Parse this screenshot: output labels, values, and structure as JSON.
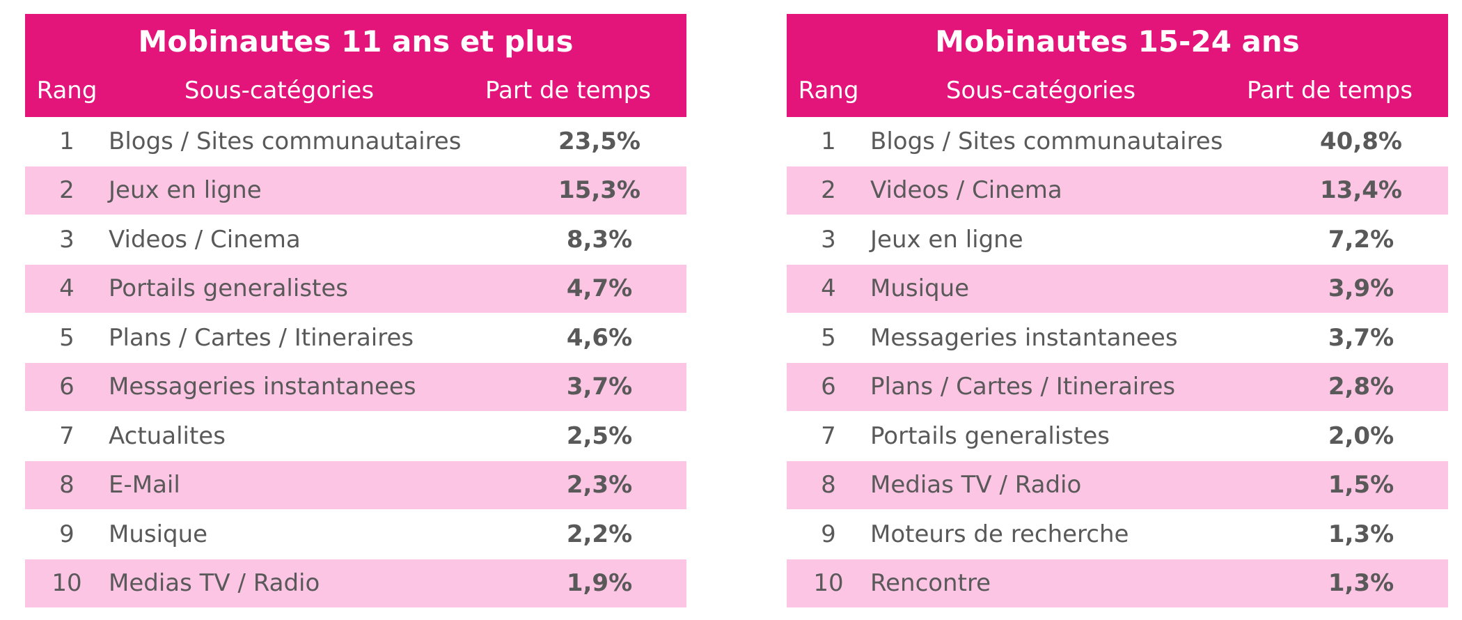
{
  "tables": [
    {
      "title": "Mobinautes 11 ans et plus",
      "headers": {
        "rank": "Rang",
        "category": "Sous-catégories",
        "share": "Part de temps"
      },
      "rows": [
        {
          "rank": "1",
          "category": "Blogs / Sites communautaires",
          "share": "23,5%"
        },
        {
          "rank": "2",
          "category": "Jeux en ligne",
          "share": "15,3%"
        },
        {
          "rank": "3",
          "category": "Videos / Cinema",
          "share": "8,3%"
        },
        {
          "rank": "4",
          "category": "Portails generalistes",
          "share": "4,7%"
        },
        {
          "rank": "5",
          "category": "Plans / Cartes / Itineraires",
          "share": "4,6%"
        },
        {
          "rank": "6",
          "category": "Messageries instantanees",
          "share": "3,7%"
        },
        {
          "rank": "7",
          "category": "Actualites",
          "share": "2,5%"
        },
        {
          "rank": "8",
          "category": "E-Mail",
          "share": "2,3%"
        },
        {
          "rank": "9",
          "category": "Musique",
          "share": "2,2%"
        },
        {
          "rank": "10",
          "category": "Medias TV / Radio",
          "share": "1,9%"
        }
      ]
    },
    {
      "title": "Mobinautes 15-24 ans",
      "headers": {
        "rank": "Rang",
        "category": "Sous-catégories",
        "share": "Part de temps"
      },
      "rows": [
        {
          "rank": "1",
          "category": "Blogs / Sites communautaires",
          "share": "40,8%"
        },
        {
          "rank": "2",
          "category": "Videos / Cinema",
          "share": "13,4%"
        },
        {
          "rank": "3",
          "category": "Jeux en ligne",
          "share": "7,2%"
        },
        {
          "rank": "4",
          "category": "Musique",
          "share": "3,9%"
        },
        {
          "rank": "5",
          "category": "Messageries instantanees",
          "share": "3,7%"
        },
        {
          "rank": "6",
          "category": "Plans / Cartes / Itineraires",
          "share": "2,8%"
        },
        {
          "rank": "7",
          "category": "Portails generalistes",
          "share": "2,0%"
        },
        {
          "rank": "8",
          "category": "Medias TV / Radio",
          "share": "1,5%"
        },
        {
          "rank": "9",
          "category": "Moteurs de recherche",
          "share": "1,3%"
        },
        {
          "rank": "10",
          "category": "Rencontre",
          "share": "1,3%"
        }
      ]
    }
  ],
  "colors": {
    "header_bg": "#e3147a",
    "stripe_bg": "#fcc5e3",
    "text": "#595959"
  }
}
